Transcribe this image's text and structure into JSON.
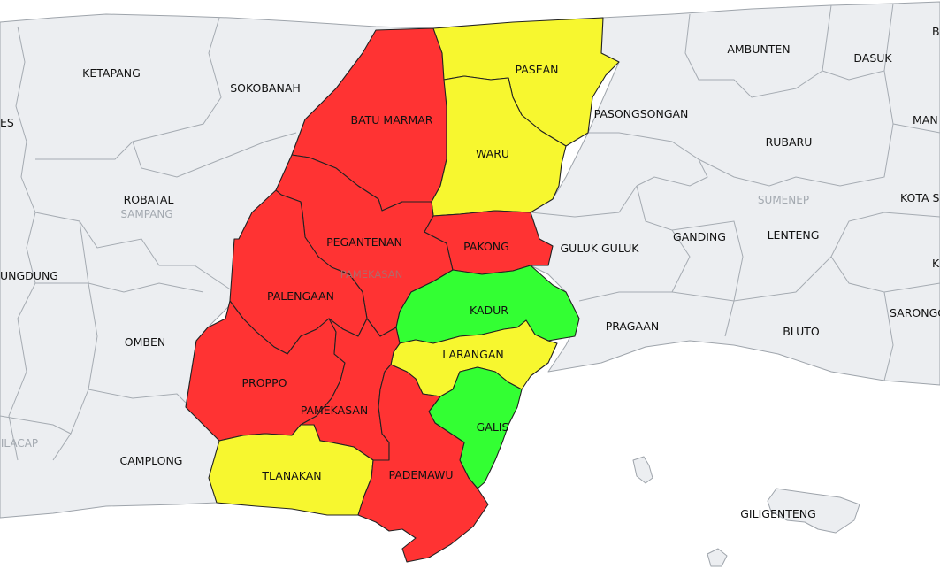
{
  "legend_colors": {
    "red": "#ff3333",
    "yellow": "#f7f72f",
    "green": "#33ff33",
    "land": "#eceef1",
    "sea": "#ffffff"
  },
  "regions": {
    "sampang": "SAMPANG",
    "pamekasan": "PAMEKASAN",
    "sumenep": "SUMENEP",
    "cilacap_partial": "ILACAP"
  },
  "pamekasan_districts": [
    {
      "name": "BATU MARMAR",
      "category": "red"
    },
    {
      "name": "PASEAN",
      "category": "yellow"
    },
    {
      "name": "WARU",
      "category": "yellow"
    },
    {
      "name": "PEGANTENAN",
      "category": "red"
    },
    {
      "name": "PAKONG",
      "category": "red"
    },
    {
      "name": "PALENGAAN",
      "category": "red"
    },
    {
      "name": "KADUR",
      "category": "green"
    },
    {
      "name": "LARANGAN",
      "category": "yellow"
    },
    {
      "name": "PROPPO",
      "category": "red"
    },
    {
      "name": "PAMEKASAN",
      "category": "red"
    },
    {
      "name": "GALIS",
      "category": "green"
    },
    {
      "name": "TLANAKAN",
      "category": "yellow"
    },
    {
      "name": "PADEMAWU",
      "category": "red"
    }
  ],
  "other_labels": {
    "ketapang": "KETAPANG",
    "sokobanah": "SOKOBANAH",
    "robatal": "ROBATAL",
    "kedungdung_partial": "UNGDUNG",
    "omben": "OMBEN",
    "camplong": "CAMPLONG",
    "es_partial": "ES",
    "ambunten": "AMBUNTEN",
    "dasuk": "DASUK",
    "pasongsongan": "PASONGSONGAN",
    "rubaru": "RUBARU",
    "manding_partial": "MAN",
    "guluk_guluk": "GULUK GULUK",
    "ganding": "GANDING",
    "lenteng": "LENTENG",
    "kota_partial": "KOTA SU",
    "pragaan": "PRAGAAN",
    "bluto": "BLUTO",
    "saronggi_partial": "SARONGG",
    "giligenteng": "GILIGENTENG",
    "b_partial": "B",
    "k_partial": "K"
  }
}
